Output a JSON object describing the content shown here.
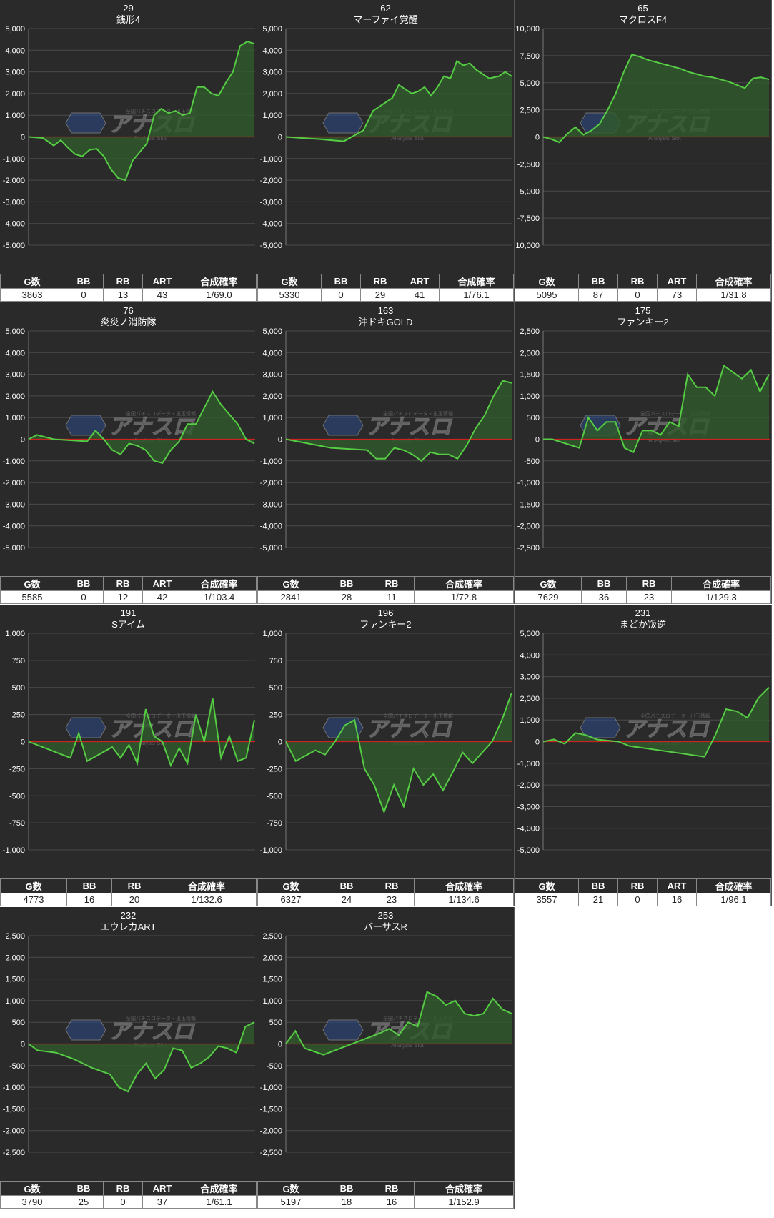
{
  "panels": [
    {
      "num": "29",
      "name": "銭形4",
      "ticks": [
        "5,000",
        "4,000",
        "3,000",
        "2,000",
        "1,000",
        "0",
        "-1,000",
        "-2,000",
        "-3,000",
        "-4,000",
        "-5,000"
      ],
      "ymin": -5000,
      "ymax": 5000,
      "points": [
        [
          0,
          0
        ],
        [
          4,
          -50
        ],
        [
          7,
          -400
        ],
        [
          9,
          -150
        ],
        [
          11,
          -500
        ],
        [
          13,
          -800
        ],
        [
          15,
          -900
        ],
        [
          17,
          -600
        ],
        [
          19,
          -550
        ],
        [
          21,
          -900
        ],
        [
          23,
          -1500
        ],
        [
          25,
          -1900
        ],
        [
          27,
          -2000
        ],
        [
          29,
          -1100
        ],
        [
          31,
          -700
        ],
        [
          33,
          -300
        ],
        [
          35,
          1000
        ],
        [
          37,
          1300
        ],
        [
          39,
          1100
        ],
        [
          41,
          1200
        ],
        [
          43,
          1000
        ],
        [
          45,
          1100
        ],
        [
          47,
          2300
        ],
        [
          49,
          2300
        ],
        [
          51,
          2000
        ],
        [
          53,
          1900
        ],
        [
          55,
          2500
        ],
        [
          57,
          3000
        ],
        [
          59,
          4200
        ],
        [
          61,
          4400
        ],
        [
          63,
          4300
        ]
      ],
      "headers": [
        "G数",
        "BB",
        "RB",
        "ART",
        "合成確率"
      ],
      "values": [
        "3863",
        "0",
        "13",
        "43",
        "1/69.0"
      ]
    },
    {
      "num": "62",
      "name": "マーファイ覚醒",
      "ticks": [
        "5,000",
        "4,000",
        "3,000",
        "2,000",
        "1,000",
        "0",
        "-1,000",
        "-2,000",
        "-3,000",
        "-4,000",
        "-5,000"
      ],
      "ymin": -5000,
      "ymax": 5000,
      "points": [
        [
          0,
          0
        ],
        [
          10,
          -100
        ],
        [
          18,
          -200
        ],
        [
          24,
          300
        ],
        [
          27,
          1200
        ],
        [
          30,
          1500
        ],
        [
          33,
          1800
        ],
        [
          35,
          2400
        ],
        [
          37,
          2200
        ],
        [
          39,
          2000
        ],
        [
          41,
          2100
        ],
        [
          43,
          2300
        ],
        [
          45,
          1900
        ],
        [
          47,
          2300
        ],
        [
          49,
          2800
        ],
        [
          51,
          2700
        ],
        [
          53,
          3500
        ],
        [
          55,
          3300
        ],
        [
          57,
          3400
        ],
        [
          59,
          3100
        ],
        [
          61,
          2900
        ],
        [
          63,
          2700
        ],
        [
          66,
          2800
        ],
        [
          68,
          3000
        ],
        [
          70,
          2800
        ]
      ],
      "headers": [
        "G数",
        "BB",
        "RB",
        "ART",
        "合成確率"
      ],
      "values": [
        "5330",
        "0",
        "29",
        "41",
        "1/76.1"
      ]
    },
    {
      "num": "65",
      "name": "マクロスF4",
      "ticks": [
        "10,000",
        "7,500",
        "5,000",
        "2,500",
        "0",
        "-2,500",
        "-5,000",
        "-7,500",
        "-10,000"
      ],
      "ymin": -10000,
      "ymax": 10000,
      "points": [
        [
          0,
          0
        ],
        [
          2,
          -200
        ],
        [
          4,
          -500
        ],
        [
          6,
          300
        ],
        [
          8,
          900
        ],
        [
          10,
          200
        ],
        [
          12,
          600
        ],
        [
          14,
          1200
        ],
        [
          16,
          2500
        ],
        [
          18,
          4000
        ],
        [
          20,
          6000
        ],
        [
          22,
          7600
        ],
        [
          24,
          7400
        ],
        [
          26,
          7100
        ],
        [
          28,
          6900
        ],
        [
          30,
          6700
        ],
        [
          32,
          6500
        ],
        [
          34,
          6300
        ],
        [
          36,
          6000
        ],
        [
          38,
          5800
        ],
        [
          40,
          5600
        ],
        [
          42,
          5500
        ],
        [
          44,
          5300
        ],
        [
          46,
          5100
        ],
        [
          48,
          4800
        ],
        [
          50,
          4500
        ],
        [
          52,
          5400
        ],
        [
          54,
          5500
        ],
        [
          56,
          5300
        ]
      ],
      "headers": [
        "G数",
        "BB",
        "RB",
        "ART",
        "合成確率"
      ],
      "values": [
        "5095",
        "87",
        "0",
        "73",
        "1/31.8"
      ]
    },
    {
      "num": "76",
      "name": "炎炎ノ消防隊",
      "ticks": [
        "5,000",
        "4,000",
        "3,000",
        "2,000",
        "1,000",
        "0",
        "-1,000",
        "-2,000",
        "-3,000",
        "-4,000",
        "-5,000"
      ],
      "ymin": -5000,
      "ymax": 5000,
      "points": [
        [
          0,
          0
        ],
        [
          2,
          200
        ],
        [
          6,
          0
        ],
        [
          14,
          -100
        ],
        [
          16,
          400
        ],
        [
          18,
          0
        ],
        [
          20,
          -500
        ],
        [
          22,
          -700
        ],
        [
          24,
          -200
        ],
        [
          26,
          -300
        ],
        [
          28,
          -500
        ],
        [
          30,
          -1000
        ],
        [
          32,
          -1100
        ],
        [
          34,
          -500
        ],
        [
          36,
          -100
        ],
        [
          38,
          700
        ],
        [
          40,
          700
        ],
        [
          44,
          2200
        ],
        [
          46,
          1600
        ],
        [
          50,
          700
        ],
        [
          52,
          0
        ],
        [
          54,
          -200
        ]
      ],
      "headers": [
        "G数",
        "BB",
        "RB",
        "ART",
        "合成確率"
      ],
      "values": [
        "5585",
        "0",
        "12",
        "42",
        "1/103.4"
      ]
    },
    {
      "num": "163",
      "name": "沖ドキGOLD",
      "ticks": [
        "5,000",
        "4,000",
        "3,000",
        "2,000",
        "1,000",
        "0",
        "-1,000",
        "-2,000",
        "-3,000",
        "-4,000",
        "-5,000"
      ],
      "ymin": -5000,
      "ymax": 5000,
      "points": [
        [
          0,
          0
        ],
        [
          10,
          -400
        ],
        [
          18,
          -500
        ],
        [
          20,
          -900
        ],
        [
          22,
          -900
        ],
        [
          24,
          -400
        ],
        [
          26,
          -500
        ],
        [
          28,
          -700
        ],
        [
          30,
          -1000
        ],
        [
          32,
          -600
        ],
        [
          34,
          -700
        ],
        [
          36,
          -700
        ],
        [
          38,
          -900
        ],
        [
          40,
          -300
        ],
        [
          42,
          500
        ],
        [
          44,
          1100
        ],
        [
          46,
          2000
        ],
        [
          48,
          2700
        ],
        [
          50,
          2600
        ]
      ],
      "headers": [
        "G数",
        "BB",
        "RB",
        "合成確率"
      ],
      "values": [
        "2841",
        "28",
        "11",
        "1/72.8"
      ]
    },
    {
      "num": "175",
      "name": "ファンキー2",
      "ticks": [
        "2,500",
        "2,000",
        "1,500",
        "1,000",
        "500",
        "0",
        "-500",
        "-1,000",
        "-1,500",
        "-2,000",
        "-2,500"
      ],
      "ymin": -2500,
      "ymax": 2500,
      "points": [
        [
          0,
          0
        ],
        [
          2,
          0
        ],
        [
          8,
          -200
        ],
        [
          10,
          500
        ],
        [
          12,
          200
        ],
        [
          14,
          400
        ],
        [
          16,
          400
        ],
        [
          18,
          -200
        ],
        [
          20,
          -300
        ],
        [
          22,
          200
        ],
        [
          24,
          200
        ],
        [
          26,
          100
        ],
        [
          28,
          400
        ],
        [
          30,
          300
        ],
        [
          32,
          1500
        ],
        [
          34,
          1200
        ],
        [
          36,
          1200
        ],
        [
          38,
          1000
        ],
        [
          40,
          1700
        ],
        [
          44,
          1400
        ],
        [
          46,
          1600
        ],
        [
          48,
          1100
        ],
        [
          50,
          1500
        ]
      ],
      "headers": [
        "G数",
        "BB",
        "RB",
        "合成確率"
      ],
      "values": [
        "7629",
        "36",
        "23",
        "1/129.3"
      ]
    },
    {
      "num": "191",
      "name": "Sアイム",
      "ticks": [
        "1,000",
        "750",
        "500",
        "250",
        "0",
        "-250",
        "-500",
        "-750",
        "-1,000"
      ],
      "ymin": -1000,
      "ymax": 1000,
      "points": [
        [
          0,
          0
        ],
        [
          10,
          -150
        ],
        [
          12,
          80
        ],
        [
          14,
          -180
        ],
        [
          20,
          -50
        ],
        [
          22,
          -150
        ],
        [
          24,
          -30
        ],
        [
          26,
          -200
        ],
        [
          28,
          300
        ],
        [
          30,
          50
        ],
        [
          32,
          0
        ],
        [
          34,
          -220
        ],
        [
          36,
          -60
        ],
        [
          38,
          -200
        ],
        [
          40,
          250
        ],
        [
          42,
          0
        ],
        [
          44,
          400
        ],
        [
          46,
          -150
        ],
        [
          48,
          50
        ],
        [
          50,
          -180
        ],
        [
          52,
          -150
        ],
        [
          54,
          200
        ]
      ],
      "headers": [
        "G数",
        "BB",
        "RB",
        "合成確率"
      ],
      "values": [
        "4773",
        "16",
        "20",
        "1/132.6"
      ]
    },
    {
      "num": "196",
      "name": "ファンキー2",
      "ticks": [
        "1,000",
        "750",
        "500",
        "250",
        "0",
        "-250",
        "-500",
        "-750",
        "-1,000"
      ],
      "ymin": -1000,
      "ymax": 1000,
      "points": [
        [
          0,
          0
        ],
        [
          2,
          -180
        ],
        [
          6,
          -80
        ],
        [
          8,
          -120
        ],
        [
          10,
          0
        ],
        [
          12,
          150
        ],
        [
          14,
          200
        ],
        [
          16,
          -250
        ],
        [
          18,
          -400
        ],
        [
          20,
          -650
        ],
        [
          22,
          -400
        ],
        [
          24,
          -600
        ],
        [
          26,
          -250
        ],
        [
          28,
          -400
        ],
        [
          30,
          -300
        ],
        [
          32,
          -450
        ],
        [
          34,
          -280
        ],
        [
          36,
          -100
        ],
        [
          38,
          -200
        ],
        [
          40,
          -100
        ],
        [
          42,
          0
        ],
        [
          44,
          200
        ],
        [
          46,
          450
        ]
      ],
      "headers": [
        "G数",
        "BB",
        "RB",
        "合成確率"
      ],
      "values": [
        "6327",
        "24",
        "23",
        "1/134.6"
      ]
    },
    {
      "num": "231",
      "name": "まどか叛逆",
      "ticks": [
        "5,000",
        "4,000",
        "3,000",
        "2,000",
        "1,000",
        "0",
        "-1,000",
        "-2,000",
        "-3,000",
        "-4,000",
        "-5,000"
      ],
      "ymin": -5000,
      "ymax": 5000,
      "points": [
        [
          0,
          0
        ],
        [
          2,
          100
        ],
        [
          4,
          -100
        ],
        [
          6,
          400
        ],
        [
          8,
          300
        ],
        [
          10,
          100
        ],
        [
          14,
          0
        ],
        [
          16,
          -200
        ],
        [
          30,
          -700
        ],
        [
          32,
          300
        ],
        [
          34,
          1500
        ],
        [
          36,
          1400
        ],
        [
          38,
          1100
        ],
        [
          40,
          2000
        ],
        [
          42,
          2500
        ]
      ],
      "headers": [
        "G数",
        "BB",
        "RB",
        "ART",
        "合成確率"
      ],
      "values": [
        "3557",
        "21",
        "0",
        "16",
        "1/96.1"
      ]
    },
    {
      "num": "232",
      "name": "エウレカART",
      "ticks": [
        "2,500",
        "2,000",
        "1,500",
        "1,000",
        "500",
        "0",
        "-500",
        "-1,000",
        "-1,500",
        "-2,000",
        "-2,500"
      ],
      "ymin": -2500,
      "ymax": 2500,
      "points": [
        [
          0,
          0
        ],
        [
          2,
          -150
        ],
        [
          6,
          -200
        ],
        [
          10,
          -350
        ],
        [
          14,
          -550
        ],
        [
          18,
          -700
        ],
        [
          20,
          -1000
        ],
        [
          22,
          -1100
        ],
        [
          24,
          -700
        ],
        [
          26,
          -450
        ],
        [
          28,
          -800
        ],
        [
          30,
          -600
        ],
        [
          32,
          -100
        ],
        [
          34,
          -150
        ],
        [
          36,
          -550
        ],
        [
          38,
          -450
        ],
        [
          40,
          -300
        ],
        [
          42,
          -50
        ],
        [
          44,
          -100
        ],
        [
          46,
          -200
        ],
        [
          48,
          400
        ],
        [
          50,
          500
        ]
      ],
      "headers": [
        "G数",
        "BB",
        "RB",
        "ART",
        "合成確率"
      ],
      "values": [
        "3790",
        "25",
        "0",
        "37",
        "1/61.1"
      ]
    },
    {
      "num": "253",
      "name": "バーサスR",
      "ticks": [
        "2,500",
        "2,000",
        "1,500",
        "1,000",
        "500",
        "0",
        "-500",
        "-1,000",
        "-1,500",
        "-2,000",
        "-2,500"
      ],
      "ymin": -2500,
      "ymax": 2500,
      "points": [
        [
          0,
          0
        ],
        [
          2,
          300
        ],
        [
          4,
          -100
        ],
        [
          8,
          -250
        ],
        [
          20,
          250
        ],
        [
          22,
          350
        ],
        [
          24,
          200
        ],
        [
          26,
          500
        ],
        [
          28,
          400
        ],
        [
          30,
          1200
        ],
        [
          32,
          1100
        ],
        [
          34,
          900
        ],
        [
          36,
          1000
        ],
        [
          38,
          700
        ],
        [
          40,
          650
        ],
        [
          42,
          700
        ],
        [
          44,
          1050
        ],
        [
          46,
          800
        ],
        [
          48,
          700
        ]
      ],
      "headers": [
        "G数",
        "BB",
        "RB",
        "合成確率"
      ],
      "values": [
        "5197",
        "18",
        "16",
        "1/152.9"
      ]
    }
  ],
  "chart_data": {
    "type": "line",
    "note_series": "差枚数 per machine",
    "colors": {
      "line": "#55cc44",
      "fill": "#2f5a2a",
      "zero": "#cc2222",
      "bg": "#2a2a2a"
    }
  },
  "watermark": {
    "logo": "アナスロ",
    "sub": "Analysis Slot",
    "top": "全国パチスロデータ・出玉情報"
  }
}
